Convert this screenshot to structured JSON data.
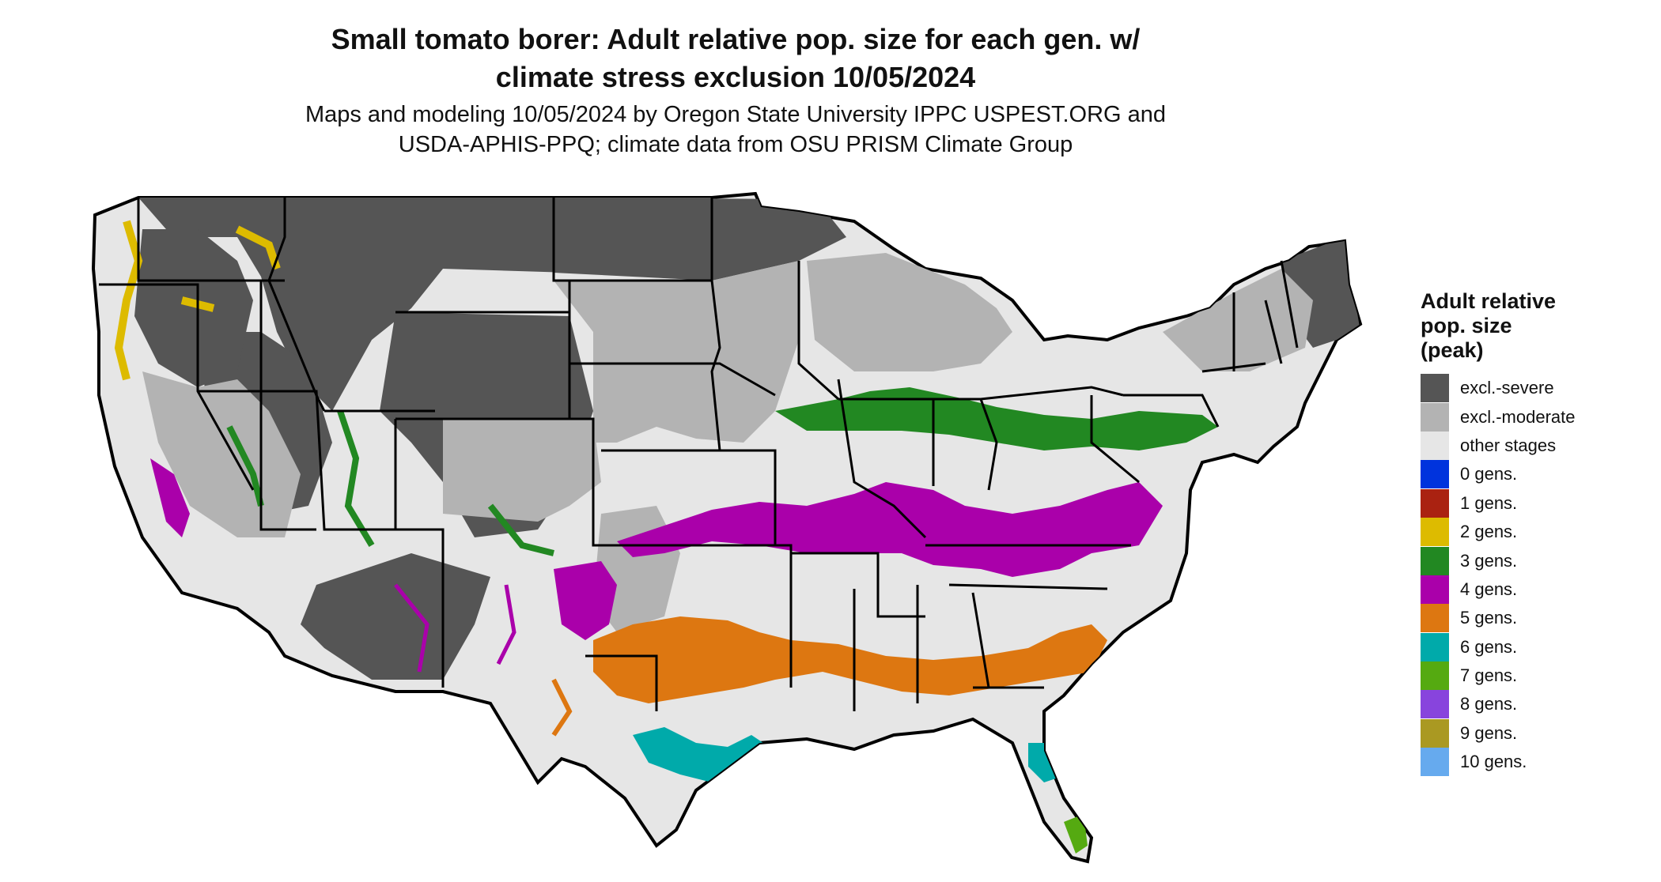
{
  "title": {
    "line1": "Small tomato borer: Adult relative pop. size for each gen. w/",
    "line2": "climate stress exclusion 10/05/2024"
  },
  "subtitle": {
    "line1": "Maps and modeling 10/05/2024 by Oregon State University IPPC USPEST.ORG and",
    "line2": "USDA-APHIS-PPQ; climate data from OSU PRISM Climate Group"
  },
  "legend": {
    "title_line1": "Adult relative",
    "title_line2": "pop. size",
    "title_line3": "(peak)",
    "items": [
      {
        "label": "excl.-severe",
        "color": "#555555"
      },
      {
        "label": "excl.-moderate",
        "color": "#b3b3b3"
      },
      {
        "label": "other stages",
        "color": "#e6e6e6"
      },
      {
        "label": "0 gens.",
        "color": "#0033dd"
      },
      {
        "label": "1 gens.",
        "color": "#aa2211"
      },
      {
        "label": "2 gens.",
        "color": "#ddbb00"
      },
      {
        "label": "3 gens.",
        "color": "#228822"
      },
      {
        "label": "4 gens.",
        "color": "#aa00aa"
      },
      {
        "label": "5 gens.",
        "color": "#dd7711"
      },
      {
        "label": "6 gens.",
        "color": "#00aaaa"
      },
      {
        "label": "7 gens.",
        "color": "#55aa11"
      },
      {
        "label": "8 gens.",
        "color": "#8844dd"
      },
      {
        "label": "9 gens.",
        "color": "#aa9922"
      },
      {
        "label": "10 gens.",
        "color": "#66aaee"
      }
    ]
  },
  "map": {
    "colors": {
      "severe": "#555555",
      "moderate": "#b3b3b3",
      "other": "#e6e6e6",
      "gen2": "#ddbb00",
      "gen3": "#228822",
      "gen4": "#aa00aa",
      "gen5": "#dd7711",
      "gen6": "#00aaaa",
      "gen7": "#55aa11",
      "border": "#000000"
    }
  }
}
